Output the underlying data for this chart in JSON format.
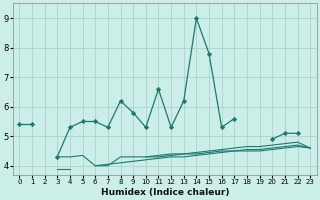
{
  "x": [
    0,
    1,
    2,
    3,
    4,
    5,
    6,
    7,
    8,
    9,
    10,
    11,
    12,
    13,
    14,
    15,
    16,
    17,
    18,
    19,
    20,
    21,
    22,
    23
  ],
  "y_main": [
    5.4,
    5.4,
    null,
    4.3,
    5.3,
    5.5,
    5.5,
    5.3,
    6.2,
    5.8,
    5.3,
    6.6,
    5.3,
    6.2,
    9.0,
    7.8,
    5.3,
    5.6,
    null,
    null,
    4.9,
    5.1,
    5.1,
    null
  ],
  "y_line2": [
    null,
    null,
    null,
    4.3,
    4.3,
    4.35,
    4.0,
    4.0,
    4.3,
    4.3,
    4.3,
    4.3,
    4.35,
    4.4,
    4.4,
    4.45,
    4.5,
    4.5,
    4.55,
    4.55,
    4.6,
    4.65,
    4.7,
    4.6
  ],
  "y_line3": [
    null,
    null,
    null,
    3.9,
    3.9,
    null,
    4.0,
    4.05,
    4.1,
    4.15,
    4.2,
    4.25,
    4.3,
    4.3,
    4.35,
    4.4,
    4.45,
    4.5,
    4.5,
    4.5,
    4.55,
    4.6,
    4.65,
    4.6
  ],
  "y_line4": [
    null,
    null,
    null,
    null,
    null,
    null,
    null,
    null,
    null,
    null,
    4.3,
    4.35,
    4.4,
    4.4,
    4.45,
    4.5,
    4.55,
    4.6,
    4.65,
    4.65,
    4.7,
    4.75,
    4.8,
    4.6
  ],
  "color": "#1a7a6e",
  "bg_color": "#cceee8",
  "grid_color": "#aaccc8",
  "xlabel": "Humidex (Indice chaleur)",
  "ylim": [
    3.7,
    9.5
  ],
  "xlim": [
    -0.5,
    23.5
  ],
  "yticks": [
    4,
    5,
    6,
    7,
    8,
    9
  ],
  "xticks": [
    0,
    1,
    2,
    3,
    4,
    5,
    6,
    7,
    8,
    9,
    10,
    11,
    12,
    13,
    14,
    15,
    16,
    17,
    18,
    19,
    20,
    21,
    22,
    23
  ]
}
